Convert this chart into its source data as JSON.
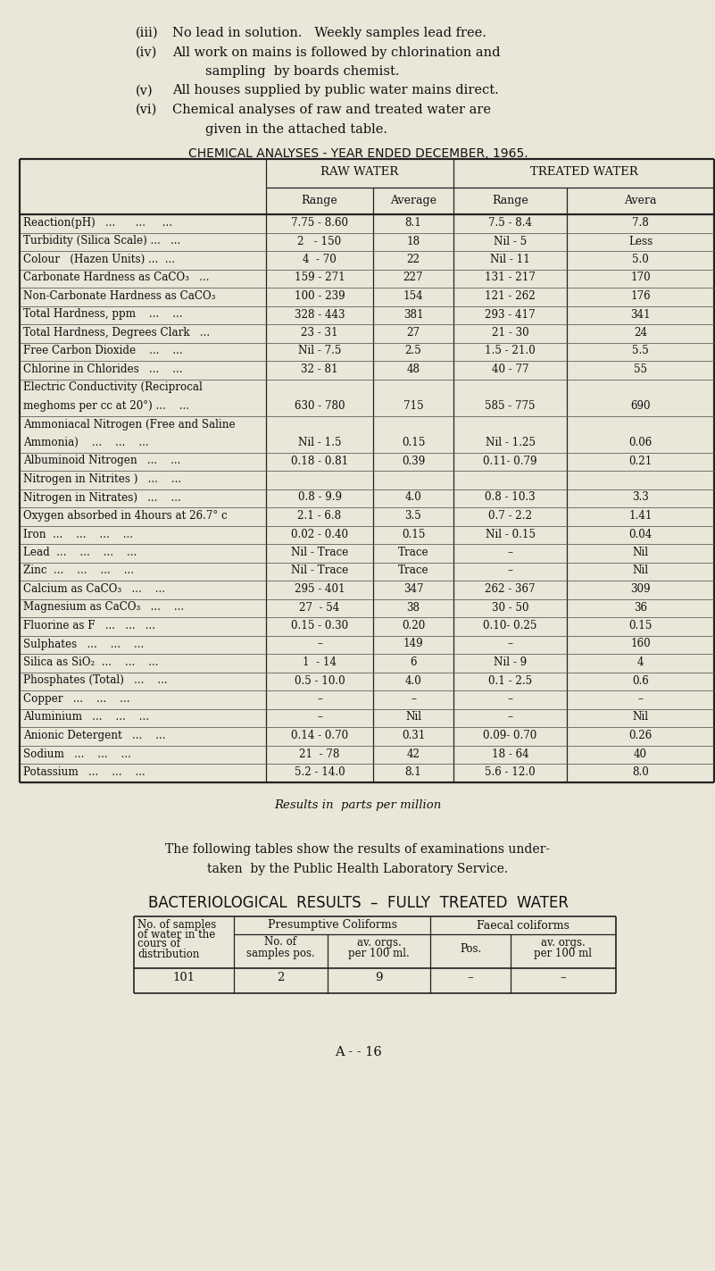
{
  "bg_color": "#eae6d8",
  "text_color": "#1a1a1a",
  "intro_lines": [
    [
      "(iii)",
      "No lead in solution.   Weekly samples lead free."
    ],
    [
      "(iv)",
      "All work on mains is followed by chlorination and"
    ],
    [
      "",
      "sampling  by boards chemist."
    ],
    [
      "(v)",
      "All houses supplied by public water mains direct."
    ],
    [
      "(vi)",
      "Chemical analyses of raw and treated water are"
    ],
    [
      "",
      "given in the attached table."
    ]
  ],
  "table_title": "CHEMICAL ANALYSES - YEAR ENDED DECEMBER, 1965.",
  "rows": [
    [
      "Reaction(pH)   ...      ...     ...",
      "7.75 - 8.60",
      "8.1",
      "7.5 - 8.4",
      "7.8"
    ],
    [
      "Turbidity (Silica Scale) ...   ...",
      "2   - 150",
      "18",
      "Nil - 5",
      "Less"
    ],
    [
      "Colour   (Hazen Units) ...  ...",
      "4  - 70",
      "22",
      "Nil - 11",
      "5.0"
    ],
    [
      "Carbonate Hardness as CaCO₃   ...",
      "159 - 271",
      "227",
      "131 - 217",
      "170"
    ],
    [
      "Non-Carbonate Hardness as CaCO₃",
      "100 - 239",
      "154",
      "121 - 262",
      "176"
    ],
    [
      "Total Hardness, ppm    ...    ...",
      "328 - 443",
      "381",
      "293 - 417",
      "341"
    ],
    [
      "Total Hardness, Degrees Clark   ...",
      "23 - 31",
      "27",
      "21 - 30",
      "24"
    ],
    [
      "Free Carbon Dioxide    ...    ...",
      "Nil - 7.5",
      "2.5",
      "1.5 - 21.0",
      "5.5"
    ],
    [
      "Chlorine in Chlorides   ...    ...",
      "32 - 81",
      "48",
      "40 - 77",
      "55"
    ],
    [
      "Electric Conductivity (Reciprocal",
      "",
      "",
      "",
      ""
    ],
    [
      "meghoms per cc at 20°) ...    ...",
      "630 - 780",
      "715",
      "585 - 775",
      "690"
    ],
    [
      "Ammoniacal Nitrogen (Free and Saline",
      "",
      "",
      "",
      ""
    ],
    [
      "Ammonia)    ...    ...    ...",
      "Nil - 1.5",
      "0.15",
      "Nil - 1.25",
      "0.06"
    ],
    [
      "Albuminoid Nitrogen   ...    ...",
      "0.18 - 0.81",
      "0.39",
      "0.11- 0.79",
      "0.21"
    ],
    [
      "Nitrogen in Nitrites )   ...    ...",
      "",
      "",
      "",
      ""
    ],
    [
      "Nitrogen in Nitrates)   ...    ...",
      "0.8 - 9.9",
      "4.0",
      "0.8 - 10.3",
      "3.3"
    ],
    [
      "Oxygen absorbed in 4hours at 26.7° c",
      "2.1 - 6.8",
      "3.5",
      "0.7 - 2.2",
      "1.41"
    ],
    [
      "Iron  ...    ...    ...    ...",
      "0.02 - 0.40",
      "0.15",
      "Nil - 0.15",
      "0.04"
    ],
    [
      "Lead  ...    ...    ...    ...",
      "Nil - Trace",
      "Trace",
      "–",
      "Nil"
    ],
    [
      "Zinc  ...    ...    ...    ...",
      "Nil - Trace",
      "Trace",
      "–",
      "Nil"
    ],
    [
      "Calcium as CaCO₃   ...    ...",
      "295 - 401",
      "347",
      "262 - 367",
      "309"
    ],
    [
      "Magnesium as CaCO₃   ...    ...",
      "27  - 54",
      "38",
      "30 - 50",
      "36"
    ],
    [
      "Fluorine as F   ...   ...   ...",
      "0.15 - 0.30",
      "0.20",
      "0.10- 0.25",
      "0.15"
    ],
    [
      "Sulphates   ...    ...    ...",
      "–",
      "149",
      "–",
      "160"
    ],
    [
      "Silica as SiO₂  ...    ...    ...",
      "1  - 14",
      "6",
      "Nil - 9",
      "4"
    ],
    [
      "Phosphates (Total)   ...    ...",
      "0.5 - 10.0",
      "4.0",
      "0.1 - 2.5",
      "0.6"
    ],
    [
      "Copper   ...    ...    ...",
      "–",
      "–",
      "–",
      "–"
    ],
    [
      "Aluminium   ...    ...    ...",
      "–",
      "Nil",
      "–",
      "Nil"
    ],
    [
      "Anionic Detergent   ...    ...",
      "0.14 - 0.70",
      "0.31",
      "0.09- 0.70",
      "0.26"
    ],
    [
      "Sodium   ...    ...    ...",
      "21  - 78",
      "42",
      "18 - 64",
      "40"
    ],
    [
      "Potassium   ...    ...    ...",
      "5.2 - 14.0",
      "8.1",
      "5.6 - 12.0",
      "8.0"
    ]
  ],
  "no_hline_rows": [
    9,
    11
  ],
  "results_note": "Results in  parts per million",
  "following_text_line1": "The following tables show the results of examinations under-",
  "following_text_line2": "taken  by the Public Health Laboratory Service.",
  "bact_title": "BACTERIOLOGICAL  RESULTS  –  FULLY  TREATED  WATER",
  "bact_data": [
    "101",
    "2",
    "9",
    "–",
    "–"
  ],
  "page_number": "A - - 16"
}
